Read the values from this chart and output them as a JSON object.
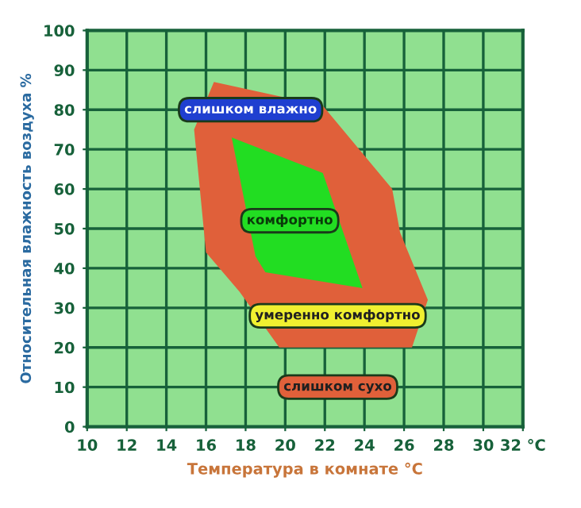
{
  "chart_data": {
    "type": "area",
    "xlabel": "Температура в комнате °C",
    "ylabel": "Относительная влажность воздуха %",
    "series": [
      {
        "color": "#e0603a",
        "x": [
          16.4,
          21.9,
          25.4,
          25.8,
          27.2,
          26.4,
          19.7,
          17.7,
          16.0,
          15.4
        ],
        "values": [
          87,
          81,
          60,
          49,
          32,
          20,
          20,
          34,
          44,
          75
        ]
      },
      {
        "color": "#22dd22",
        "x": [
          17.3,
          21.9,
          23.9,
          19.0,
          18.5
        ],
        "values": [
          73,
          64,
          35,
          39,
          43
        ]
      }
    ],
    "annotations": [
      "слишком влажно",
      "комфортно",
      "умеренно комфортно",
      "слишком сухо"
    ],
    "xlim": [
      10,
      32
    ],
    "ylim": [
      0,
      100
    ],
    "xticks": [
      10,
      12,
      14,
      16,
      18,
      20,
      22,
      24,
      26,
      28,
      30,
      {
        "value": 32,
        "label": "32 °C"
      }
    ],
    "yticks": [
      0,
      10,
      20,
      30,
      40,
      50,
      60,
      70,
      80,
      90,
      100
    ],
    "grid": true
  }
}
